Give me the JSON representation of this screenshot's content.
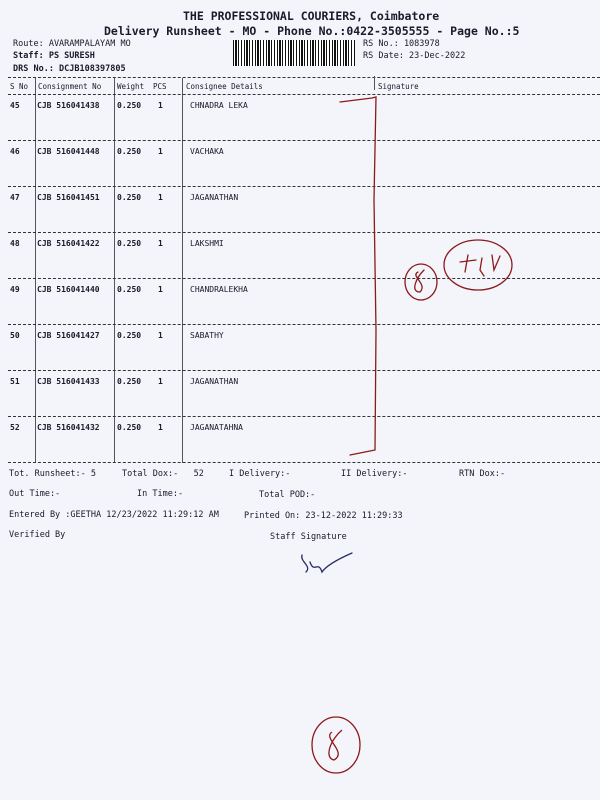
{
  "header": {
    "company": "THE PROFESSIONAL COURIERS, Coimbatore",
    "subtitle": "Delivery Runsheet - MO - Phone No.:0422-3505555 - Page No.:5",
    "route": "Route: AVARAMPALAYAM MO",
    "staff": "Staff: PS SURESH",
    "drs": "DRS No.: DCJB108397805",
    "rs_no": "RS No.: 1083978",
    "rs_date": "RS Date: 23-Dec-2022"
  },
  "table": {
    "columns": [
      "S No",
      "Consignment No",
      "Weight",
      "PCS",
      "Consignee Details",
      "Signature"
    ],
    "rows": [
      {
        "sno": "45",
        "cn": "CJB 516041438",
        "weight": "0.250",
        "pcs": "1",
        "consignee": "CHNADRA LEKA"
      },
      {
        "sno": "46",
        "cn": "CJB 516041448",
        "weight": "0.250",
        "pcs": "1",
        "consignee": "VACHAKA"
      },
      {
        "sno": "47",
        "cn": "CJB 516041451",
        "weight": "0.250",
        "pcs": "1",
        "consignee": "JAGANATHAN"
      },
      {
        "sno": "48",
        "cn": "CJB 516041422",
        "weight": "0.250",
        "pcs": "1",
        "consignee": "LAKSHMI"
      },
      {
        "sno": "49",
        "cn": "CJB 516041440",
        "weight": "0.250",
        "pcs": "1",
        "consignee": "CHANDRALEKHA"
      },
      {
        "sno": "50",
        "cn": "CJB 516041427",
        "weight": "0.250",
        "pcs": "1",
        "consignee": "SABATHY"
      },
      {
        "sno": "51",
        "cn": "CJB 516041433",
        "weight": "0.250",
        "pcs": "1",
        "consignee": "JAGANATHAN"
      },
      {
        "sno": "52",
        "cn": "CJB 516041432",
        "weight": "0.250",
        "pcs": "1",
        "consignee": "JAGANATAHNA"
      }
    ]
  },
  "footer": {
    "tot_runsheet": "Tot. Runsheet:- 5",
    "total_dox": "Total Dox:-   52",
    "i_delivery": "I Delivery:-",
    "ii_delivery": "II Delivery:-",
    "rtn_dox": "RTN Dox:-",
    "out_time": "Out Time:-",
    "in_time": "In Time:-",
    "total_pod": "Total POD:-",
    "entered_by": "Entered By :GEETHA 12/23/2022 11:29:12 AM",
    "printed_on": "Printed On: 23-12-2022 11:29:33",
    "verified_by": "Verified By",
    "staff_signature": "Staff Signature"
  },
  "colors": {
    "ink": "#1a1a2a",
    "pen": "#8b1a1a",
    "paper": "#f4f4fb"
  }
}
